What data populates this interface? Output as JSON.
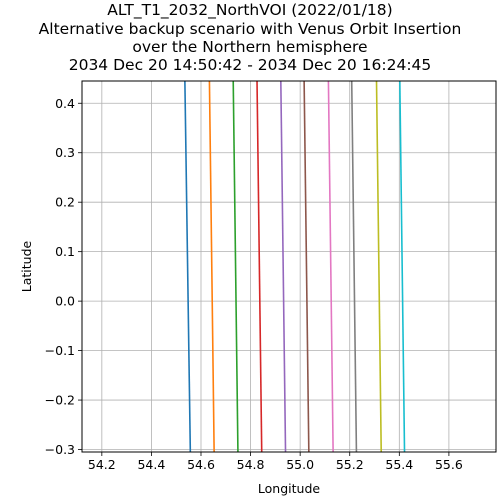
{
  "chart_data": {
    "type": "line",
    "title_lines": [
      "ALT_T1_2032_NorthVOI (2022/01/18)",
      "Alternative backup scenario with Venus Orbit Insertion",
      "over the Northern hemisphere",
      "2034 Dec 20 14:50:42 - 2034 Dec 20 16:24:45"
    ],
    "xlabel": "Longitude",
    "ylabel": "Latitude",
    "xlim": [
      54.12,
      55.79
    ],
    "ylim": [
      -0.305,
      0.445
    ],
    "xticks": [
      "54.2",
      "54.4",
      "54.6",
      "54.8",
      "55.0",
      "55.2",
      "55.4",
      "55.6"
    ],
    "yticks": [
      "0.4",
      "0.3",
      "0.2",
      "0.1",
      "0.0",
      "−0.1",
      "−0.2",
      "−0.3"
    ],
    "xtick_values": [
      54.2,
      54.4,
      54.6,
      54.8,
      55.0,
      55.2,
      55.4,
      55.6
    ],
    "ytick_values": [
      0.4,
      0.3,
      0.2,
      0.1,
      0.0,
      -0.1,
      -0.2,
      -0.3
    ],
    "grid": true,
    "series": [
      {
        "color": "#1f77b4",
        "x": [
          54.535,
          54.557
        ],
        "y": [
          0.445,
          -0.305
        ]
      },
      {
        "color": "#ff7f0e",
        "x": [
          54.634,
          54.653
        ],
        "y": [
          0.445,
          -0.305
        ]
      },
      {
        "color": "#2ca02c",
        "x": [
          54.73,
          54.749
        ],
        "y": [
          0.445,
          -0.305
        ]
      },
      {
        "color": "#d62728",
        "x": [
          54.826,
          54.845
        ],
        "y": [
          0.445,
          -0.305
        ]
      },
      {
        "color": "#9467bd",
        "x": [
          54.922,
          54.941
        ],
        "y": [
          0.445,
          -0.305
        ]
      },
      {
        "color": "#8c564b",
        "x": [
          55.016,
          55.035
        ],
        "y": [
          0.445,
          -0.305
        ]
      },
      {
        "color": "#e377c2",
        "x": [
          55.114,
          55.133
        ],
        "y": [
          0.445,
          -0.305
        ]
      },
      {
        "color": "#7f7f7f",
        "x": [
          55.208,
          55.227
        ],
        "y": [
          0.445,
          -0.305
        ]
      },
      {
        "color": "#bcbd22",
        "x": [
          55.308,
          55.327
        ],
        "y": [
          0.445,
          -0.305
        ]
      },
      {
        "color": "#17becf",
        "x": [
          55.402,
          55.421
        ],
        "y": [
          0.445,
          -0.305
        ]
      }
    ]
  }
}
